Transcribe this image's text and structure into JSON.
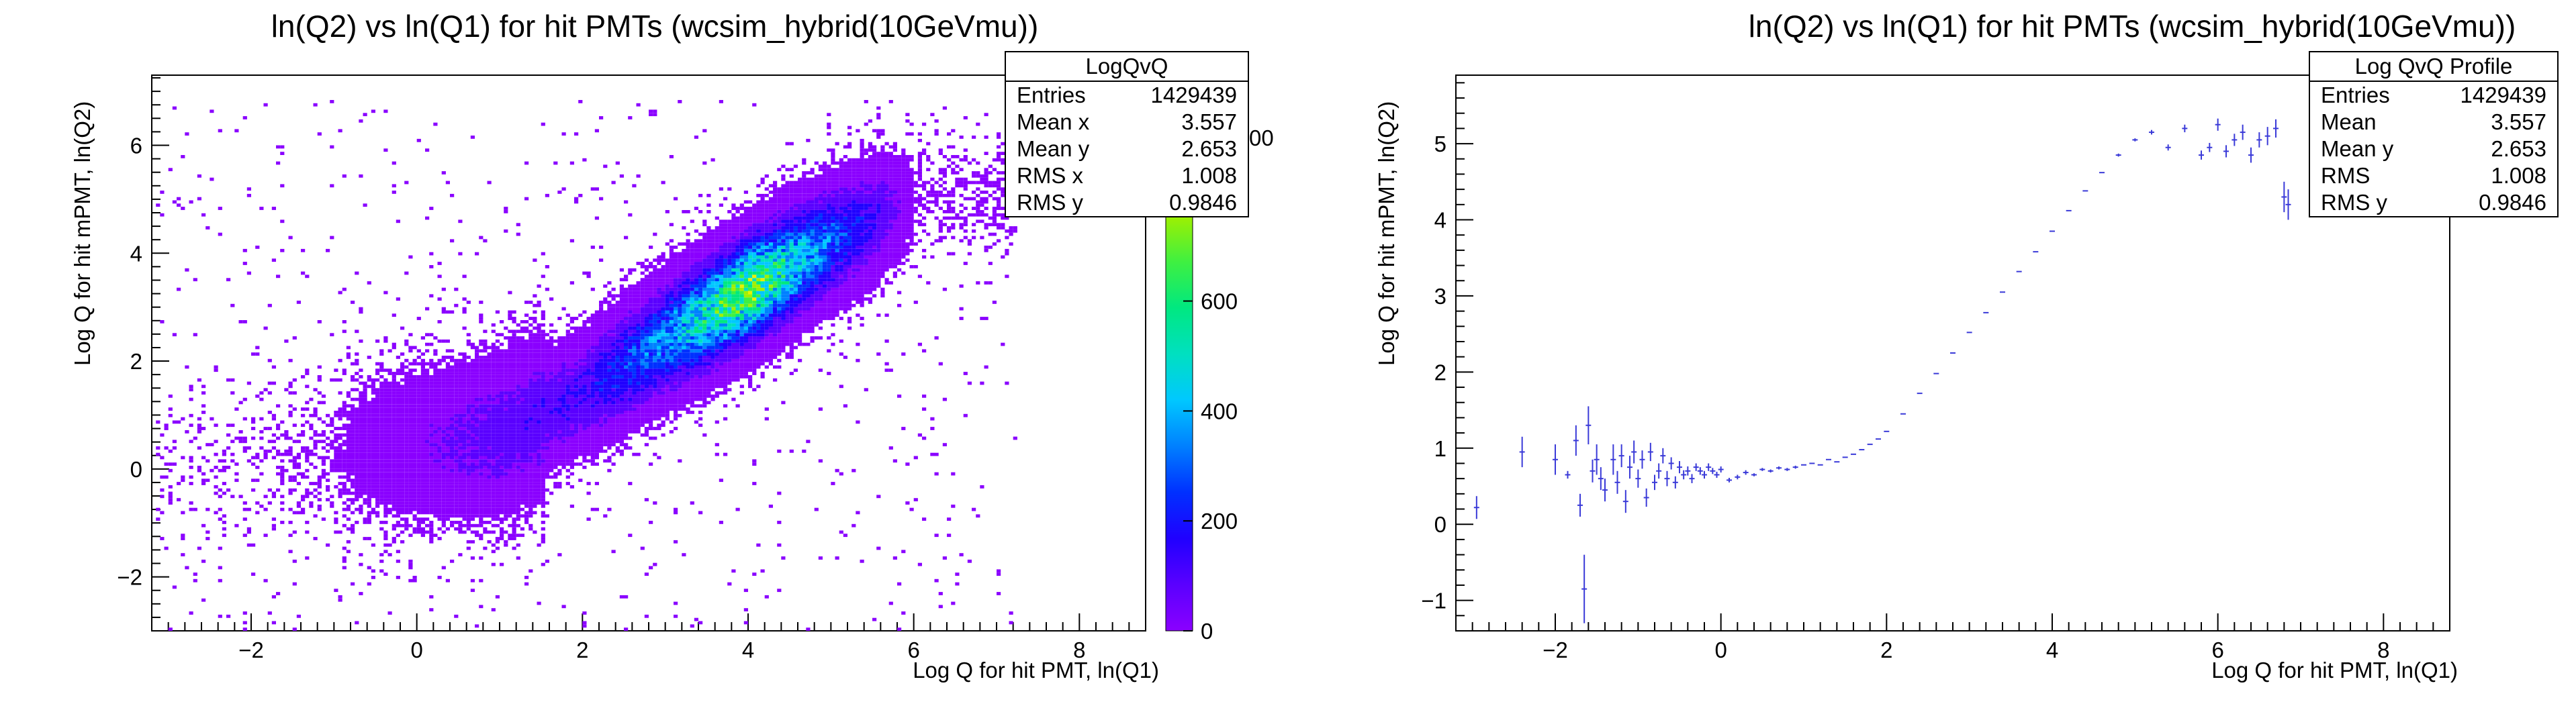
{
  "colors": {
    "profile": "#3a3ad8",
    "axis": "#000000"
  },
  "palette": [
    "#8a00ff",
    "#5a00ff",
    "#2000ff",
    "#0030ff",
    "#0080ff",
    "#00c8ff",
    "#00e0c0",
    "#00e880",
    "#40f040",
    "#a0f000",
    "#e8f000"
  ],
  "left": {
    "title": "ln(Q2) vs ln(Q1) for hit PMTs (wcsim_hybrid(10GeVmu))",
    "xlabel": "Log Q for hit PMT, ln(Q1)",
    "ylabel": "Log Q for hit mPMT, ln(Q2)",
    "partial_tick": "00",
    "stats": {
      "name": "LogQvQ",
      "rows": [
        {
          "label": "Entries",
          "value": "1429439"
        },
        {
          "label": "Mean x",
          "value": "3.557"
        },
        {
          "label": "Mean y",
          "value": "2.653"
        },
        {
          "label": "RMS x",
          "value": "1.008"
        },
        {
          "label": "RMS y",
          "value": "0.9846"
        }
      ]
    }
  },
  "right": {
    "title": "ln(Q2) vs ln(Q1) for hit PMTs (wcsim_hybrid(10GeVmu))",
    "xlabel": "Log Q for hit PMT, ln(Q1)",
    "ylabel": "Log Q for hit mPMT, ln(Q2)",
    "stats": {
      "name": "Log QvQ Profile",
      "rows": [
        {
          "label": "Entries",
          "value": "1429439"
        },
        {
          "label": "Mean",
          "value": "3.557"
        },
        {
          "label": "Mean y",
          "value": "2.653"
        },
        {
          "label": "RMS",
          "value": "1.008"
        },
        {
          "label": "RMS y",
          "value": "0.9846"
        }
      ]
    }
  },
  "chart_data": [
    {
      "type": "heatmap",
      "title": "ln(Q2) vs ln(Q1) for hit PMTs (wcsim_hybrid(10GeVmu))",
      "xlabel": "Log Q for hit PMT, ln(Q1)",
      "ylabel": "Log Q for hit mPMT, ln(Q2)",
      "xlim": [
        -3.2,
        8.8
      ],
      "ylim": [
        -3.0,
        7.3
      ],
      "zlim": [
        0,
        840
      ],
      "xticks": [
        -2,
        0,
        2,
        4,
        6,
        8
      ],
      "yticks": [
        -2,
        0,
        2,
        4,
        6
      ],
      "zticks": [
        0,
        200,
        400,
        600,
        800
      ],
      "colorbar": true,
      "grid": false,
      "density_ridge": {
        "x": [
          -2,
          -1,
          0,
          1,
          2,
          3,
          4,
          5,
          6
        ],
        "y": [
          0.2,
          0.3,
          0.4,
          0.6,
          1.4,
          2.4,
          3.3,
          4.2,
          5.0
        ],
        "peak_counts": [
          3,
          10,
          60,
          120,
          160,
          380,
          700,
          300,
          10
        ]
      }
    },
    {
      "type": "scatter",
      "title": "ln(Q2) vs ln(Q1) for hit PMTs (wcsim_hybrid(10GeVmu))",
      "xlabel": "Log Q for hit PMT, ln(Q1)",
      "ylabel": "Log Q for hit mPMT, ln(Q2)",
      "xlim": [
        -3.2,
        8.8
      ],
      "ylim": [
        -1.4,
        5.9
      ],
      "xticks": [
        -2,
        0,
        2,
        4,
        6,
        8
      ],
      "yticks": [
        -1,
        0,
        1,
        2,
        3,
        4,
        5
      ],
      "grid": false,
      "series": [
        {
          "x": [
            -2.95,
            -2.4,
            -2.0,
            -1.85,
            -1.75,
            -1.7,
            -1.65,
            -1.6,
            -1.55,
            -1.5,
            -1.45,
            -1.4,
            -1.3,
            -1.25,
            -1.2,
            -1.15,
            -1.1,
            -1.05,
            -1.0,
            -0.95,
            -0.9,
            -0.85,
            -0.8,
            -0.75,
            -0.7,
            -0.65,
            -0.6,
            -0.55,
            -0.5,
            -0.45,
            -0.4,
            -0.35,
            -0.3,
            -0.25,
            -0.2,
            -0.15,
            -0.1,
            -0.05,
            0.0,
            0.1,
            0.2,
            0.3,
            0.4,
            0.5,
            0.6,
            0.7,
            0.8,
            0.9,
            1.0,
            1.1,
            1.2,
            1.3,
            1.4,
            1.5,
            1.6,
            1.7,
            1.8,
            1.9,
            2.0,
            2.2,
            2.4,
            2.6,
            2.8,
            3.0,
            3.2,
            3.4,
            3.6,
            3.8,
            4.0,
            4.2,
            4.4,
            4.6,
            4.8,
            5.0,
            5.2,
            5.4,
            5.6,
            5.8,
            5.9,
            6.0,
            6.1,
            6.2,
            6.3,
            6.4,
            6.5,
            6.6,
            6.7,
            6.8,
            6.85
          ],
          "y": [
            0.22,
            0.95,
            0.85,
            0.65,
            1.1,
            0.25,
            -0.85,
            1.3,
            0.7,
            0.85,
            0.6,
            0.45,
            0.85,
            0.55,
            0.9,
            0.3,
            0.75,
            0.95,
            0.6,
            0.85,
            0.35,
            0.95,
            0.55,
            0.7,
            0.9,
            0.6,
            0.8,
            0.55,
            0.75,
            0.65,
            0.7,
            0.6,
            0.75,
            0.7,
            0.65,
            0.75,
            0.7,
            0.65,
            0.72,
            0.58,
            0.62,
            0.68,
            0.65,
            0.72,
            0.7,
            0.74,
            0.72,
            0.75,
            0.78,
            0.8,
            0.78,
            0.85,
            0.82,
            0.88,
            0.92,
            0.98,
            1.05,
            1.12,
            1.22,
            1.45,
            1.72,
            1.98,
            2.25,
            2.52,
            2.78,
            3.05,
            3.32,
            3.58,
            3.85,
            4.12,
            4.38,
            4.62,
            4.85,
            5.05,
            5.15,
            4.95,
            5.2,
            4.85,
            4.95,
            5.25,
            4.9,
            5.05,
            5.15,
            4.85,
            5.05,
            5.1,
            5.2,
            4.3,
            4.2
          ],
          "yerr": [
            0.15,
            0.2,
            0.2,
            0.05,
            0.2,
            0.15,
            0.45,
            0.25,
            0.15,
            0.2,
            0.15,
            0.15,
            0.2,
            0.15,
            0.15,
            0.15,
            0.15,
            0.15,
            0.12,
            0.12,
            0.12,
            0.12,
            0.1,
            0.1,
            0.1,
            0.1,
            0.08,
            0.08,
            0.08,
            0.06,
            0.06,
            0.06,
            0.05,
            0.05,
            0.05,
            0.05,
            0.04,
            0.04,
            0.04,
            0.03,
            0.03,
            0.03,
            0.02,
            0.02,
            0.02,
            0.02,
            0.02,
            0.02,
            0.01,
            0.01,
            0.01,
            0.01,
            0.01,
            0.01,
            0.01,
            0.01,
            0.01,
            0.01,
            0.01,
            0.01,
            0.01,
            0.01,
            0.01,
            0.01,
            0.01,
            0.01,
            0.01,
            0.01,
            0.01,
            0.01,
            0.01,
            0.01,
            0.02,
            0.02,
            0.03,
            0.04,
            0.05,
            0.06,
            0.06,
            0.08,
            0.08,
            0.08,
            0.1,
            0.1,
            0.1,
            0.12,
            0.12,
            0.2,
            0.2
          ]
        }
      ]
    }
  ]
}
